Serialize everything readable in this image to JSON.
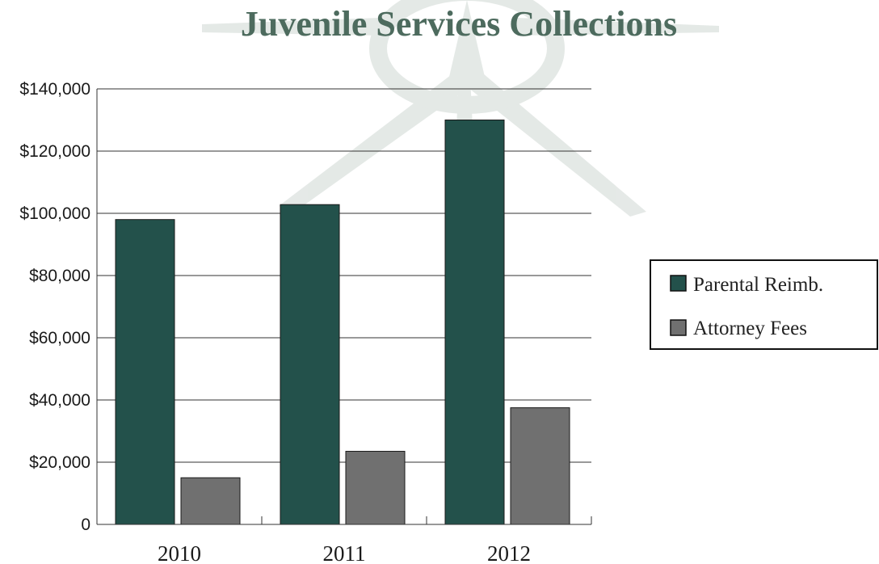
{
  "chart_data": {
    "type": "bar",
    "title": "Juvenile Services Collections",
    "xlabel": "",
    "ylabel": "",
    "categories": [
      "2010",
      "2011",
      "2012"
    ],
    "series": [
      {
        "name": "Parental Reimb.",
        "values": [
          98000,
          102800,
          130000
        ],
        "color": "#23514b"
      },
      {
        "name": "Attorney Fees",
        "values": [
          15000,
          23500,
          37500
        ],
        "color": "#707070"
      }
    ],
    "ylim": [
      0,
      140000
    ],
    "yticks": [
      0,
      20000,
      40000,
      60000,
      80000,
      100000,
      120000,
      140000
    ],
    "ytick_labels": [
      "0",
      "$20,000",
      "$40,000",
      "$60,000",
      "$80,000",
      "$100,000",
      "$120,000",
      "$140,000"
    ],
    "grid": true,
    "legend_position": "right"
  }
}
